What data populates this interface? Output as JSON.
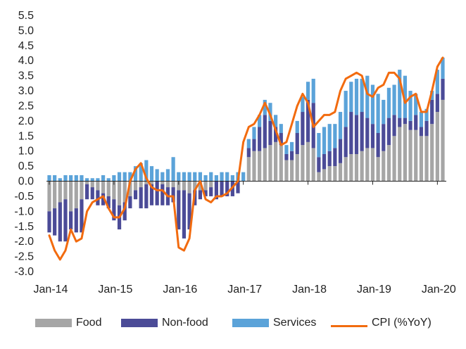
{
  "chart_data": {
    "type": "bar",
    "stacked": true,
    "title": "",
    "xlabel": "",
    "ylabel": "",
    "ylim": [
      -3.0,
      5.5
    ],
    "yticks": [
      "5.5",
      "5.0",
      "4.5",
      "4.0",
      "3.5",
      "3.0",
      "2.5",
      "2.0",
      "1.5",
      "1.0",
      "0.5",
      "0.0",
      "-0.5",
      "-1.0",
      "-1.5",
      "-2.0",
      "-2.5",
      "-3.0"
    ],
    "ytick_values": [
      5.5,
      5.0,
      4.5,
      4.0,
      3.5,
      3.0,
      2.5,
      2.0,
      1.5,
      1.0,
      0.5,
      0.0,
      -0.5,
      -1.0,
      -1.5,
      -2.0,
      -2.5,
      -3.0
    ],
    "xtick_labels": [
      "Jan-14",
      "Jan-15",
      "Jan-16",
      "Jan-17",
      "Jan-18",
      "Jan-19",
      "Jan-20"
    ],
    "xtick_indices": [
      0,
      12,
      24,
      36,
      48,
      60,
      72
    ],
    "grid": false,
    "legend_position": "bottom",
    "colors": {
      "food": "#a6a6a6",
      "nonfood": "#4b4b97",
      "services": "#5ba3d9",
      "cpi": "#f26b0f"
    },
    "series": [
      {
        "name": "Food",
        "kind": "bar",
        "values": [
          -1.0,
          -0.9,
          -0.7,
          -0.6,
          -1.0,
          -0.9,
          -0.6,
          -0.1,
          -0.2,
          -0.3,
          -0.4,
          -0.5,
          -0.6,
          -0.8,
          -0.7,
          -0.5,
          -0.3,
          -0.2,
          -0.1,
          -0.1,
          0.0,
          -0.1,
          -0.2,
          -0.2,
          -0.3,
          -0.3,
          -0.4,
          -0.3,
          -0.3,
          -0.3,
          -0.2,
          0.0,
          0.0,
          0.0,
          0.0,
          0.0,
          0.0,
          0.8,
          1.0,
          1.0,
          1.1,
          1.2,
          1.3,
          1.2,
          0.7,
          0.7,
          0.9,
          1.2,
          1.3,
          1.1,
          0.3,
          0.4,
          0.5,
          0.5,
          0.6,
          0.8,
          0.9,
          0.9,
          1.0,
          1.1,
          1.1,
          0.8,
          1.0,
          1.2,
          1.5,
          1.8,
          1.9,
          1.7,
          1.7,
          1.5,
          1.5,
          1.9,
          2.3,
          2.7
        ]
      },
      {
        "name": "Non-food",
        "kind": "bar",
        "values": [
          -0.7,
          -0.9,
          -1.3,
          -1.4,
          -0.6,
          -0.8,
          -1.1,
          -0.5,
          -0.4,
          -0.5,
          -0.4,
          -0.4,
          -0.7,
          -0.8,
          -0.6,
          -0.4,
          -0.3,
          -0.7,
          -0.8,
          -0.7,
          -0.8,
          -0.7,
          -0.6,
          -0.5,
          -1.3,
          -1.6,
          -1.2,
          -0.5,
          -0.3,
          -0.2,
          -0.3,
          -0.6,
          -0.5,
          -0.5,
          -0.5,
          -0.4,
          0.0,
          0.3,
          0.4,
          0.8,
          1.1,
          0.8,
          0.5,
          0.4,
          0.2,
          0.3,
          0.7,
          1.1,
          1.4,
          1.5,
          0.5,
          0.5,
          0.5,
          0.6,
          0.8,
          1.0,
          1.4,
          1.3,
          1.3,
          1.0,
          0.8,
          0.8,
          0.9,
          0.9,
          0.7,
          0.3,
          0.2,
          0.3,
          0.5,
          0.3,
          0.5,
          0.8,
          0.6,
          0.7
        ]
      },
      {
        "name": "Services",
        "kind": "bar",
        "values": [
          0.2,
          0.2,
          0.1,
          0.2,
          0.2,
          0.2,
          0.2,
          0.1,
          0.1,
          0.1,
          0.2,
          0.1,
          0.2,
          0.3,
          0.3,
          0.3,
          0.5,
          0.6,
          0.7,
          0.5,
          0.4,
          0.3,
          0.4,
          0.8,
          0.3,
          0.3,
          0.3,
          0.3,
          0.3,
          0.2,
          0.3,
          0.2,
          0.3,
          0.3,
          0.2,
          0.3,
          0.3,
          0.3,
          0.4,
          0.4,
          0.5,
          0.6,
          0.4,
          0.3,
          0.3,
          0.3,
          0.4,
          0.5,
          0.6,
          0.8,
          0.8,
          0.9,
          0.9,
          0.8,
          0.9,
          1.2,
          1.0,
          1.2,
          1.1,
          1.4,
          1.3,
          1.3,
          0.8,
          1.0,
          1.0,
          1.6,
          1.4,
          1.0,
          0.7,
          0.5,
          0.4,
          0.3,
          0.8,
          0.7
        ]
      },
      {
        "name": "CPI (%YoY)",
        "kind": "line",
        "values": [
          -1.8,
          -2.3,
          -2.6,
          -2.3,
          -1.6,
          -2.0,
          -1.9,
          -1.0,
          -0.7,
          -0.6,
          -0.5,
          -0.9,
          -1.2,
          -1.2,
          -0.9,
          0.0,
          0.4,
          0.6,
          0.1,
          -0.2,
          -0.3,
          -0.3,
          -0.5,
          -0.5,
          -2.2,
          -2.3,
          -1.9,
          -0.3,
          0.0,
          -0.6,
          -0.7,
          -0.5,
          -0.5,
          -0.4,
          -0.2,
          0.0,
          1.3,
          1.8,
          1.9,
          2.2,
          2.6,
          2.2,
          1.7,
          1.2,
          1.3,
          1.9,
          2.5,
          2.9,
          2.6,
          1.8,
          2.0,
          2.2,
          2.2,
          2.3,
          3.0,
          3.4,
          3.5,
          3.6,
          3.5,
          2.9,
          2.8,
          3.1,
          3.2,
          3.6,
          3.6,
          3.4,
          2.6,
          2.8,
          2.9,
          2.3,
          2.3,
          3.0,
          3.8,
          4.1
        ]
      }
    ],
    "legend": [
      "Food",
      "Non-food",
      "Services",
      "CPI (%YoY)"
    ]
  }
}
